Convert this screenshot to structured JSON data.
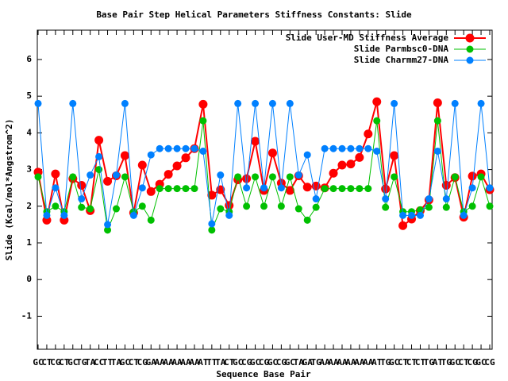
{
  "chart_data": {
    "type": "line",
    "title": "Base Pair Step Helical Parameters Stiffness Constants: Slide",
    "x_label": "Sequence Base Pair",
    "y_label": "Slide (Kcal/mol*Angstrom^2)",
    "categories": [
      "GC",
      "CT",
      "CG",
      "CT",
      "GC",
      "TG",
      "TA",
      "CC",
      "TT",
      "TA",
      "GC",
      "CT",
      "CG",
      "GA",
      "AA",
      "AA",
      "AA",
      "AA",
      "AA",
      "AT",
      "TT",
      "TA",
      "CT",
      "GC",
      "CG",
      "GC",
      "CG",
      "GC",
      "CG",
      "GC",
      "TA",
      "GA",
      "TG",
      "AA",
      "AA",
      "AA",
      "AA",
      "AA",
      "AA",
      "AT",
      "TG",
      "GC",
      "CT",
      "CT",
      "CT",
      "TG",
      "AT",
      "TG",
      "GC",
      "CT",
      "CG",
      "GC",
      "CG"
    ],
    "series": [
      {
        "name": "Slide User-MD Stiffness Average",
        "color": "#ff0000",
        "values": [
          2.93,
          1.62,
          2.88,
          1.62,
          2.75,
          2.57,
          1.88,
          3.8,
          2.68,
          2.83,
          3.38,
          1.82,
          3.12,
          2.4,
          2.6,
          2.87,
          3.1,
          3.32,
          3.57,
          4.78,
          2.3,
          2.45,
          2.02,
          2.72,
          2.75,
          3.77,
          2.43,
          3.45,
          2.63,
          2.43,
          2.83,
          2.52,
          2.55,
          2.5,
          2.9,
          3.12,
          3.15,
          3.33,
          3.97,
          4.85,
          2.47,
          3.38,
          1.47,
          1.65,
          1.88,
          2.17,
          4.82,
          2.57,
          2.78,
          1.7,
          2.82,
          2.88,
          2.45
        ]
      },
      {
        "name": "Slide Parmbsc0-DNA",
        "color": "#00c000",
        "values": [
          2.8,
          1.85,
          2.0,
          1.85,
          2.8,
          1.97,
          1.93,
          3.0,
          1.35,
          1.93,
          2.8,
          1.85,
          2.0,
          1.62,
          2.48,
          2.48,
          2.48,
          2.48,
          2.48,
          4.33,
          1.35,
          1.93,
          1.85,
          2.8,
          2.0,
          2.8,
          2.0,
          2.8,
          2.0,
          2.8,
          1.93,
          1.62,
          1.97,
          2.48,
          2.48,
          2.48,
          2.48,
          2.48,
          2.48,
          4.33,
          1.97,
          2.8,
          1.85,
          1.85,
          1.9,
          1.97,
          4.33,
          1.97,
          2.8,
          1.85,
          2.0,
          2.8,
          2.0
        ]
      },
      {
        "name": "Slide Charmm27-DNA",
        "color": "#0080ff",
        "values": [
          4.8,
          1.75,
          2.5,
          1.75,
          4.8,
          2.2,
          2.85,
          3.35,
          1.5,
          2.85,
          4.8,
          1.75,
          2.5,
          3.4,
          3.57,
          3.57,
          3.57,
          3.57,
          3.57,
          3.5,
          1.52,
          2.85,
          1.75,
          4.8,
          2.5,
          4.8,
          2.5,
          4.8,
          2.5,
          4.8,
          2.85,
          3.4,
          2.2,
          3.57,
          3.57,
          3.57,
          3.57,
          3.57,
          3.57,
          3.5,
          2.2,
          4.8,
          1.75,
          1.75,
          1.75,
          2.2,
          3.5,
          2.2,
          4.8,
          1.75,
          2.5,
          4.8,
          2.5
        ]
      }
    ],
    "ylim": [
      -1.9,
      6.8
    ],
    "yticks": [
      -1,
      0,
      1,
      2,
      3,
      4,
      5,
      6
    ],
    "legend": "top-right"
  }
}
